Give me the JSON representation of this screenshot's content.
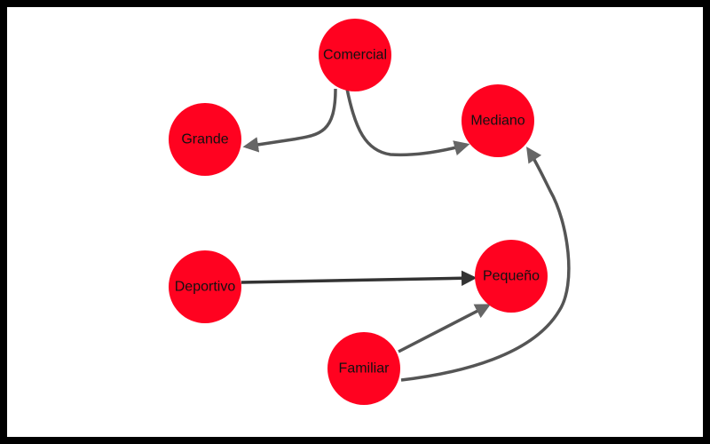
{
  "colors": {
    "node_fill": "#ff0220",
    "edge_light": "#666666",
    "edge_dark": "#333333",
    "canvas": "#ffffff",
    "border": "#000000"
  },
  "nodes": [
    {
      "id": "comercial",
      "label": "Comercial"
    },
    {
      "id": "mediano",
      "label": "Mediano"
    },
    {
      "id": "grande",
      "label": "Grande"
    },
    {
      "id": "deportivo",
      "label": "Deportivo"
    },
    {
      "id": "pequeno",
      "label": "Pequeño"
    },
    {
      "id": "familiar",
      "label": "Familiar"
    }
  ],
  "edges": [
    {
      "from": "comercial",
      "to": "grande"
    },
    {
      "from": "comercial",
      "to": "mediano"
    },
    {
      "from": "deportivo",
      "to": "pequeno"
    },
    {
      "from": "familiar",
      "to": "pequeno"
    },
    {
      "from": "familiar",
      "to": "mediano"
    }
  ]
}
